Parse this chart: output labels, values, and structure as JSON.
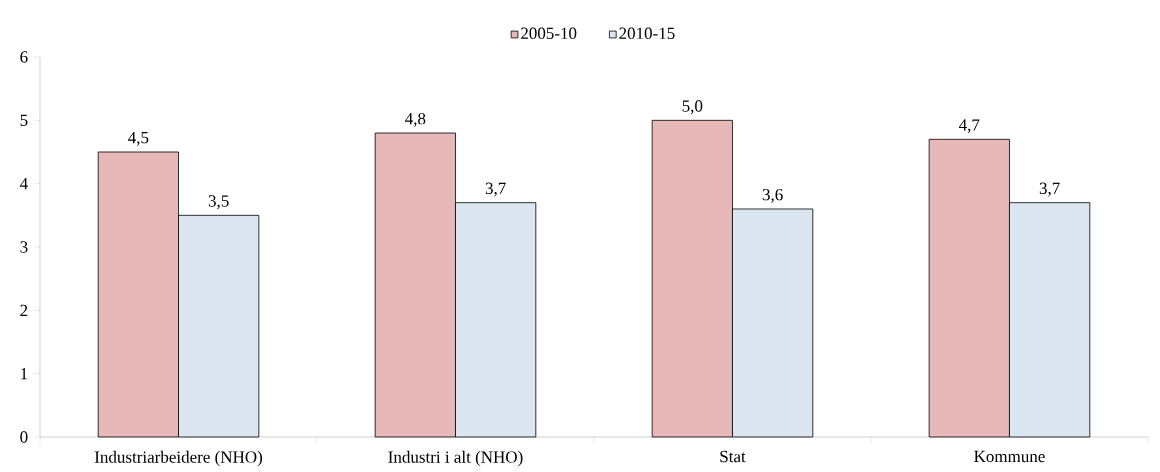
{
  "chart_data": {
    "type": "bar",
    "categories": [
      "Industriarbeidere (NHO)",
      "Industri i alt (NHO)",
      "Stat",
      "Kommune"
    ],
    "series": [
      {
        "name": "2005-10",
        "color": "#e6b8b7",
        "values": [
          4.5,
          4.8,
          5.0,
          4.7
        ],
        "value_labels": [
          "4,5",
          "4,8",
          "5,0",
          "4,7"
        ]
      },
      {
        "name": "2010-15",
        "color": "#dce6f1",
        "values": [
          3.5,
          3.7,
          3.6,
          3.7
        ],
        "value_labels": [
          "3,5",
          "3,7",
          "3,6",
          "3,7"
        ]
      }
    ],
    "ylim": [
      0,
      6
    ],
    "yticks": [
      0,
      1,
      2,
      3,
      4,
      5,
      6
    ],
    "grid": false,
    "legend": "top"
  }
}
